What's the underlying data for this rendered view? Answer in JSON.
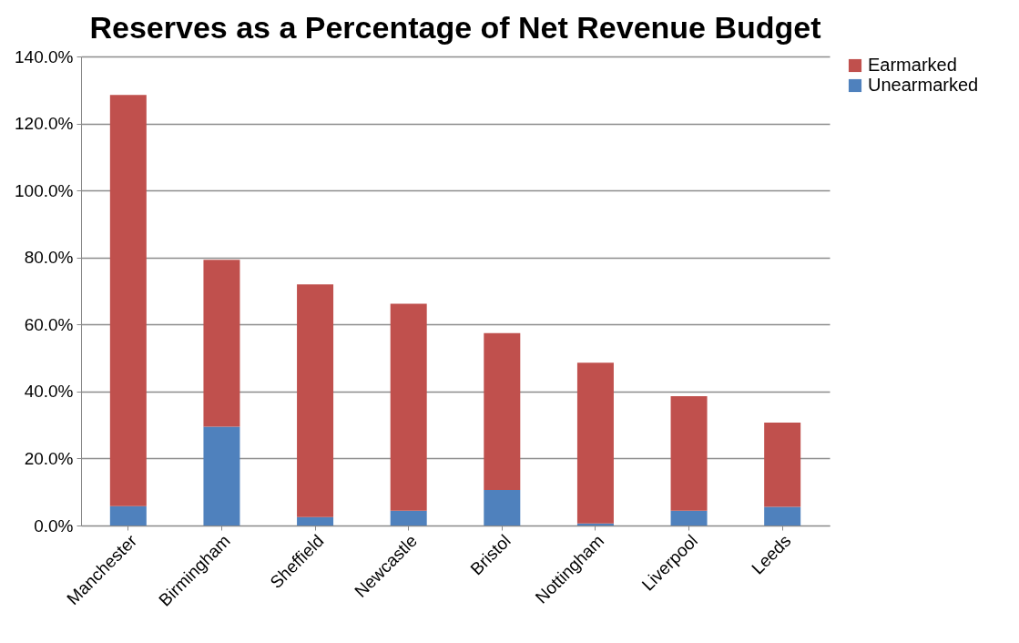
{
  "chart_data": {
    "type": "bar",
    "title": "Reserves as a Percentage of Net Revenue Budget",
    "categories": [
      "Manchester",
      "Birmingham",
      "Sheffield",
      "Newcastle",
      "Bristol",
      "Nottingham",
      "Liverpool",
      "Leeds"
    ],
    "stacked": true,
    "series": [
      {
        "name": "Unearmarked",
        "color": "#4f81bd",
        "values": [
          5.8,
          29.5,
          2.5,
          4.4,
          10.6,
          0.6,
          4.4,
          5.6
        ]
      },
      {
        "name": "Earmarked",
        "color": "#c0504d",
        "values": [
          122.7,
          49.8,
          69.5,
          61.8,
          46.8,
          48.0,
          34.2,
          25.1
        ]
      }
    ],
    "ylim": [
      0,
      140
    ],
    "yticks": [
      {
        "value": 0,
        "label": "0.0%"
      },
      {
        "value": 20,
        "label": "20.0%"
      },
      {
        "value": 40,
        "label": "40.0%"
      },
      {
        "value": 60,
        "label": "60.0%"
      },
      {
        "value": 80,
        "label": "80.0%"
      },
      {
        "value": 100,
        "label": "100.0%"
      },
      {
        "value": 120,
        "label": "120.0%"
      },
      {
        "value": 140,
        "label": "140.0%"
      }
    ],
    "grid": "y",
    "legend": "right"
  }
}
